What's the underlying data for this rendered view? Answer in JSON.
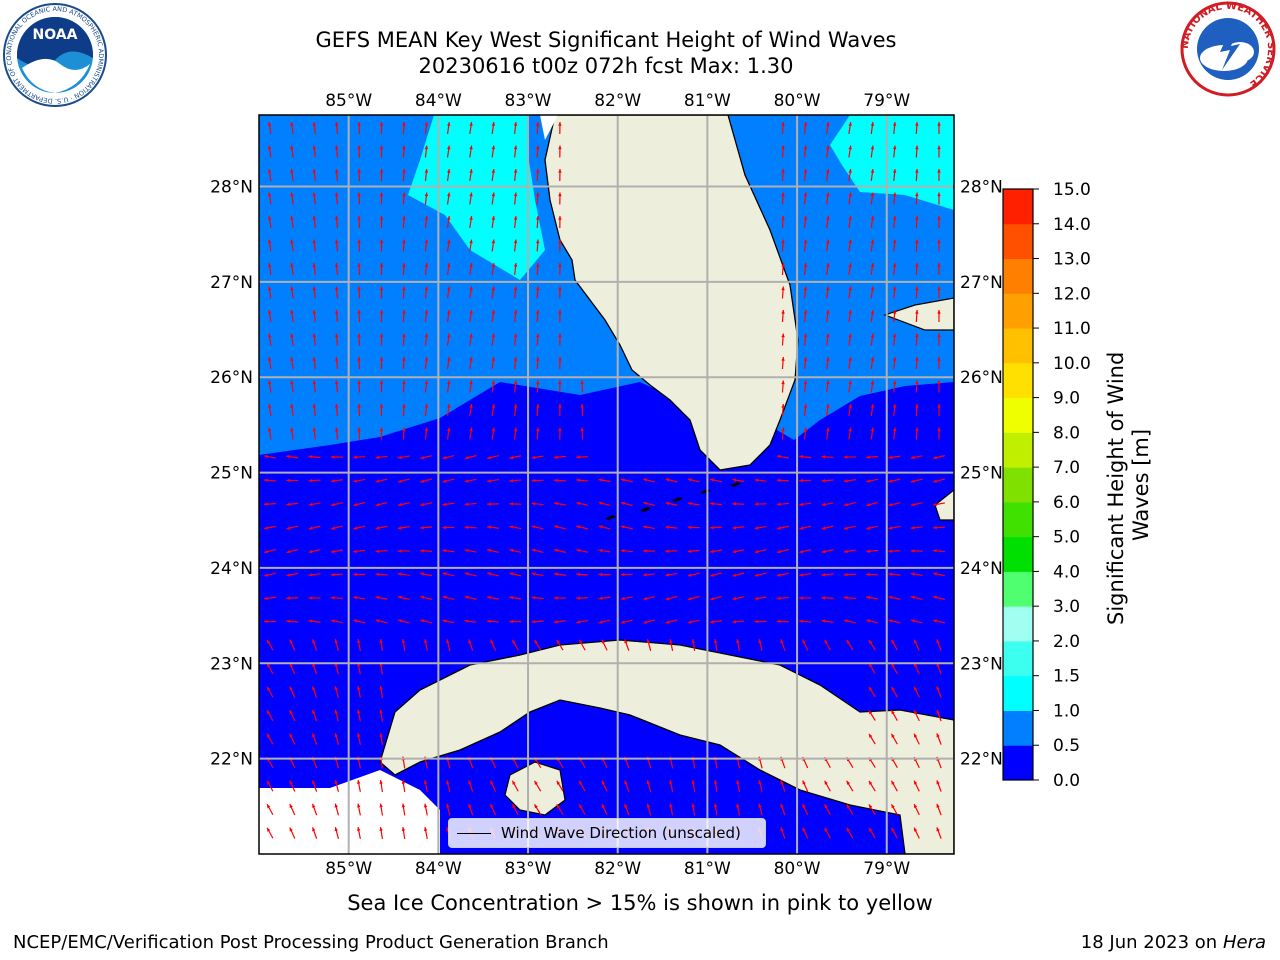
{
  "title": {
    "line1": "GEFS MEAN Key West Significant Height of Wind Waves",
    "line2": "20230616 t00z 072h fcst   Max: 1.30"
  },
  "map": {
    "lon_range": [
      -86.0,
      -78.25
    ],
    "lat_range": [
      21.0,
      28.75
    ],
    "lon_ticks": [
      "85°W",
      "84°W",
      "83°W",
      "82°W",
      "81°W",
      "80°W",
      "79°W"
    ],
    "lat_ticks": [
      "22°N",
      "23°N",
      "24°N",
      "25°N",
      "26°N",
      "27°N",
      "28°N"
    ],
    "lon_tick_values": [
      -85,
      -84,
      -83,
      -82,
      -81,
      -80,
      -79
    ],
    "lat_tick_values": [
      22,
      23,
      24,
      25,
      26,
      27,
      28
    ],
    "land_color": "#eeeedc",
    "arrow_color": "#ff0000",
    "grid_color": "#b0b0b0"
  },
  "legend": {
    "label": "Wind Wave Direction (unscaled)"
  },
  "colorbar": {
    "label": "Significant Height of Wind Waves [m]",
    "label_line1": "Significant Height of Wind",
    "label_line2": "Waves [m]",
    "ticks": [
      "0.0",
      "0.5",
      "1.0",
      "1.5",
      "2.0",
      "3.0",
      "4.0",
      "5.0",
      "6.0",
      "7.0",
      "8.0",
      "9.0",
      "10.0",
      "11.0",
      "12.0",
      "13.0",
      "14.0",
      "15.0"
    ],
    "colors": [
      "#0000ff",
      "#0080ff",
      "#00ffff",
      "#3cffef",
      "#a0fff0",
      "#50ff70",
      "#00e000",
      "#40e000",
      "#80e000",
      "#c0f000",
      "#f0ff00",
      "#ffe000",
      "#ffc000",
      "#ffa000",
      "#ff8000",
      "#ff5000",
      "#ff2000"
    ]
  },
  "note": "Sea Ice Concentration > 15% is shown in pink to yellow",
  "footer": {
    "left": "NCEP/EMC/Verification Post Processing Product Generation Branch",
    "date": "18 Jun 2023 on",
    "host": "Hera"
  },
  "logos": {
    "noaa_text": "NOAA",
    "noaa_ring": "NATIONAL OCEANIC AND ATMOSPHERIC ADMINISTRATION · U.S. DEPARTMENT OF COMMERCE",
    "nws_ring": "NATIONAL WEATHER SERVICE"
  }
}
